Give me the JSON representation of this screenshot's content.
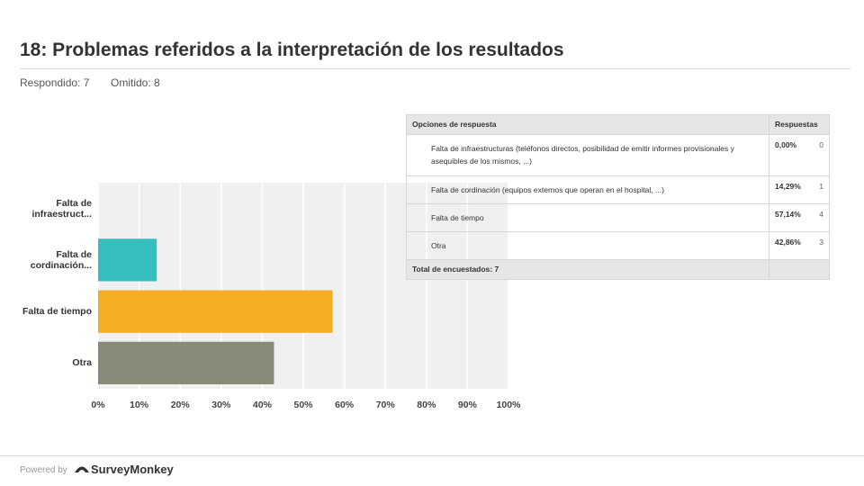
{
  "header": {
    "title": "18: Problemas referidos a la interpretación de los resultados",
    "answered": "Respondido: 7",
    "skipped": "Omitido: 8"
  },
  "chart_data": {
    "type": "bar",
    "orientation": "horizontal",
    "categories": [
      "Falta de infraestruct...",
      "Falta de cordinación...",
      "Falta de tiempo",
      "Otra"
    ],
    "values": [
      0,
      14.29,
      57.14,
      42.86
    ],
    "colors": [
      "#2f9fd0",
      "#35bfc1",
      "#f5ae23",
      "#8a8a78"
    ],
    "xlim": [
      0,
      100
    ],
    "xticks": [
      {
        "value": 0,
        "label": "0%"
      },
      {
        "value": 10,
        "label": "10%"
      },
      {
        "value": 20,
        "label": "20%"
      },
      {
        "value": 30,
        "label": "30%"
      },
      {
        "value": 40,
        "label": "40%"
      },
      {
        "value": 50,
        "label": "50%"
      },
      {
        "value": 60,
        "label": "60%"
      },
      {
        "value": 70,
        "label": "70%"
      },
      {
        "value": 80,
        "label": "80%"
      },
      {
        "value": 90,
        "label": "90%"
      },
      {
        "value": 100,
        "label": "100%"
      }
    ],
    "grid": true
  },
  "table": {
    "headers": [
      "Opciones de respuesta",
      "Respuestas"
    ],
    "rows": [
      [
        "Falta de infraestructuras (teléfonos directos, posibilidad de emitir informes provisionales y asequibles de los mismos, ...)",
        "0,00%",
        "0"
      ],
      [
        "Falta de cordinación (equipos externos que operan en el hospital, ...)",
        "14,29%",
        "1"
      ],
      [
        "Falta de tiempo",
        "57,14%",
        "4"
      ],
      [
        "Otra",
        "42,86%",
        "3"
      ]
    ],
    "total": "Total de encuestados: 7"
  },
  "footer": {
    "powered": "Powered by",
    "brand": "SurveyMonkey"
  }
}
